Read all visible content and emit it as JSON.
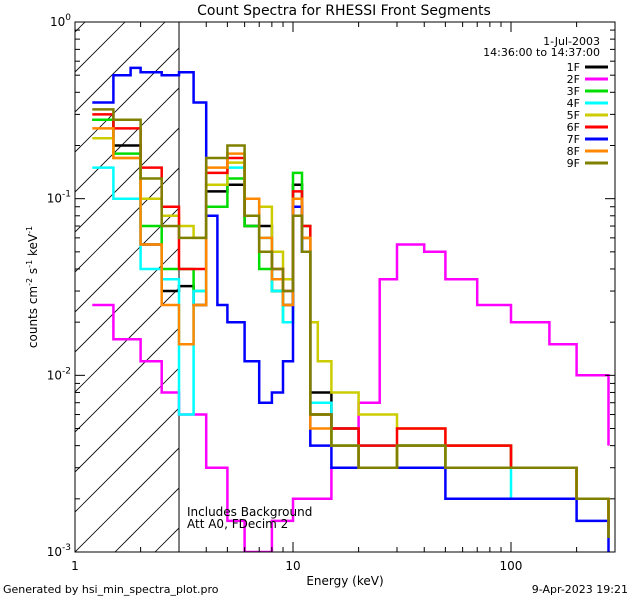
{
  "chart_data": {
    "type": "line",
    "title": "Count Spectra for RHESSI Front Segments",
    "xlabel": "Energy (keV)",
    "ylabel_parts": {
      "base": "counts cm",
      "exp1": "-2",
      "mid": " s",
      "exp2": "-1",
      "end": " keV",
      "exp3": "-1"
    },
    "xscale": "log",
    "yscale": "log",
    "xlim": [
      1.0,
      300.0
    ],
    "ylim": [
      0.001,
      1.0
    ],
    "x_ticks": [
      {
        "value": 1,
        "label": "1"
      },
      {
        "value": 10,
        "label": "10"
      },
      {
        "value": 100,
        "label": "100"
      }
    ],
    "y_ticks": [
      {
        "value": 1,
        "base": "10",
        "exp": "0"
      },
      {
        "value": 0.1,
        "base": "10",
        "exp": "-1"
      },
      {
        "value": 0.01,
        "base": "10",
        "exp": "-2"
      },
      {
        "value": 0.001,
        "base": "10",
        "exp": "-3"
      }
    ],
    "date": "1-Jul-2003",
    "time_range": "14:36:00 to 14:37:00",
    "annotation_lines": [
      "Includes Background",
      "Att A0, FDecim 2"
    ],
    "hatch_region": [
      1.0,
      3.0
    ],
    "legend_position": "top-right",
    "series": [
      {
        "name": "1F",
        "color": "#000000",
        "x": [
          1.2,
          1.5,
          2.0,
          2.5,
          3.0,
          3.5,
          4.0,
          5.0,
          6.0,
          7.0,
          8.0,
          9.0,
          10.0,
          11.0,
          12.0,
          15.0,
          20.0,
          30.0,
          50.0,
          100.0,
          200.0,
          280.0
        ],
        "y": [
          0.28,
          0.2,
          0.055,
          0.03,
          0.032,
          0.025,
          0.11,
          0.12,
          0.07,
          0.07,
          0.03,
          0.025,
          0.12,
          0.06,
          0.008,
          0.005,
          0.004,
          0.004,
          0.004,
          0.003,
          0.002,
          0.0015
        ]
      },
      {
        "name": "2F",
        "color": "#ff00ff",
        "x": [
          1.2,
          1.5,
          2.0,
          2.5,
          3.0,
          4.0,
          5.0,
          6.0,
          8.0,
          10.0,
          12.0,
          15.0,
          20.0,
          25.0,
          30.0,
          40.0,
          50.0,
          70.0,
          100.0,
          150.0,
          200.0,
          280.0
        ],
        "y": [
          0.025,
          0.016,
          0.012,
          0.008,
          0.006,
          0.003,
          0.0015,
          0.001,
          0.0015,
          0.002,
          0.002,
          0.003,
          0.007,
          0.035,
          0.055,
          0.05,
          0.035,
          0.025,
          0.02,
          0.015,
          0.01,
          0.004
        ]
      },
      {
        "name": "3F",
        "color": "#00dd00",
        "x": [
          1.2,
          1.5,
          2.0,
          2.5,
          3.0,
          3.5,
          4.0,
          5.0,
          6.0,
          7.0,
          8.0,
          9.0,
          10.0,
          11.0,
          12.0,
          15.0,
          20.0,
          30.0,
          50.0,
          100.0,
          200.0,
          280.0
        ],
        "y": [
          0.28,
          0.18,
          0.07,
          0.04,
          0.04,
          0.03,
          0.09,
          0.13,
          0.07,
          0.04,
          0.03,
          0.02,
          0.14,
          0.07,
          0.006,
          0.004,
          0.003,
          0.004,
          0.003,
          0.003,
          0.002,
          0.0012
        ]
      },
      {
        "name": "4F",
        "color": "#00ffff",
        "x": [
          1.2,
          1.5,
          2.0,
          2.5,
          3.0,
          3.5,
          4.0,
          5.0,
          6.0,
          7.0,
          8.0,
          9.0,
          10.0,
          11.0,
          12.0,
          15.0,
          20.0,
          30.0,
          50.0,
          100.0,
          200.0,
          280.0
        ],
        "y": [
          0.15,
          0.1,
          0.04,
          0.035,
          0.006,
          0.03,
          0.12,
          0.15,
          0.1,
          0.06,
          0.03,
          0.02,
          0.1,
          0.05,
          0.007,
          0.004,
          0.004,
          0.004,
          0.003,
          0.002,
          0.002,
          0.0012
        ]
      },
      {
        "name": "5F",
        "color": "#cccc00",
        "x": [
          1.2,
          1.5,
          2.0,
          2.5,
          3.0,
          3.5,
          4.0,
          5.0,
          6.0,
          7.0,
          8.0,
          9.0,
          10.0,
          11.0,
          12.0,
          13.0,
          15.0,
          20.0,
          30.0,
          50.0,
          100.0,
          200.0,
          280.0
        ],
        "y": [
          0.22,
          0.17,
          0.1,
          0.08,
          0.07,
          0.06,
          0.12,
          0.16,
          0.1,
          0.09,
          0.05,
          0.035,
          0.1,
          0.06,
          0.02,
          0.012,
          0.008,
          0.006,
          0.005,
          0.004,
          0.003,
          0.002,
          0.0013
        ]
      },
      {
        "name": "6F",
        "color": "#ff0000",
        "x": [
          1.2,
          1.5,
          2.0,
          2.5,
          3.0,
          3.5,
          4.0,
          5.0,
          6.0,
          7.0,
          8.0,
          9.0,
          10.0,
          11.0,
          12.0,
          15.0,
          20.0,
          30.0,
          50.0,
          100.0,
          200.0,
          280.0
        ],
        "y": [
          0.3,
          0.25,
          0.15,
          0.09,
          0.04,
          0.04,
          0.14,
          0.17,
          0.08,
          0.05,
          0.04,
          0.03,
          0.11,
          0.07,
          0.006,
          0.005,
          0.004,
          0.005,
          0.004,
          0.003,
          0.002,
          0.0014
        ]
      },
      {
        "name": "7F",
        "color": "#0000ff",
        "x": [
          1.2,
          1.5,
          1.8,
          2.0,
          2.5,
          3.0,
          3.5,
          4.0,
          4.5,
          5.0,
          6.0,
          7.0,
          8.0,
          9.0,
          10.0,
          11.0,
          12.0,
          15.0,
          20.0,
          30.0,
          50.0,
          100.0,
          200.0,
          280.0
        ],
        "y": [
          0.35,
          0.5,
          0.55,
          0.52,
          0.5,
          0.52,
          0.35,
          0.08,
          0.025,
          0.02,
          0.012,
          0.007,
          0.008,
          0.012,
          0.09,
          0.05,
          0.004,
          0.003,
          0.003,
          0.003,
          0.002,
          0.002,
          0.0015,
          0.001
        ]
      },
      {
        "name": "8F",
        "color": "#ff8800",
        "x": [
          1.2,
          1.5,
          2.0,
          2.5,
          3.0,
          3.5,
          4.0,
          5.0,
          6.0,
          7.0,
          8.0,
          9.0,
          10.0,
          11.0,
          12.0,
          15.0,
          20.0,
          30.0,
          50.0,
          100.0,
          200.0,
          280.0
        ],
        "y": [
          0.25,
          0.17,
          0.055,
          0.025,
          0.015,
          0.025,
          0.15,
          0.18,
          0.1,
          0.06,
          0.035,
          0.025,
          0.1,
          0.06,
          0.005,
          0.004,
          0.003,
          0.004,
          0.003,
          0.003,
          0.002,
          0.0012
        ]
      },
      {
        "name": "9F",
        "color": "#808000",
        "x": [
          1.2,
          1.5,
          2.0,
          2.5,
          3.0,
          3.5,
          4.0,
          5.0,
          6.0,
          7.0,
          8.0,
          9.0,
          10.0,
          11.0,
          12.0,
          15.0,
          20.0,
          30.0,
          50.0,
          100.0,
          200.0,
          280.0
        ],
        "y": [
          0.32,
          0.28,
          0.13,
          0.07,
          0.06,
          0.06,
          0.17,
          0.2,
          0.08,
          0.05,
          0.04,
          0.03,
          0.08,
          0.05,
          0.006,
          0.004,
          0.003,
          0.004,
          0.003,
          0.003,
          0.002,
          0.0012
        ]
      }
    ]
  },
  "footer": {
    "generated_by": "Generated by hsi_min_spectra_plot.pro",
    "timestamp": "9-Apr-2023 19:21"
  }
}
